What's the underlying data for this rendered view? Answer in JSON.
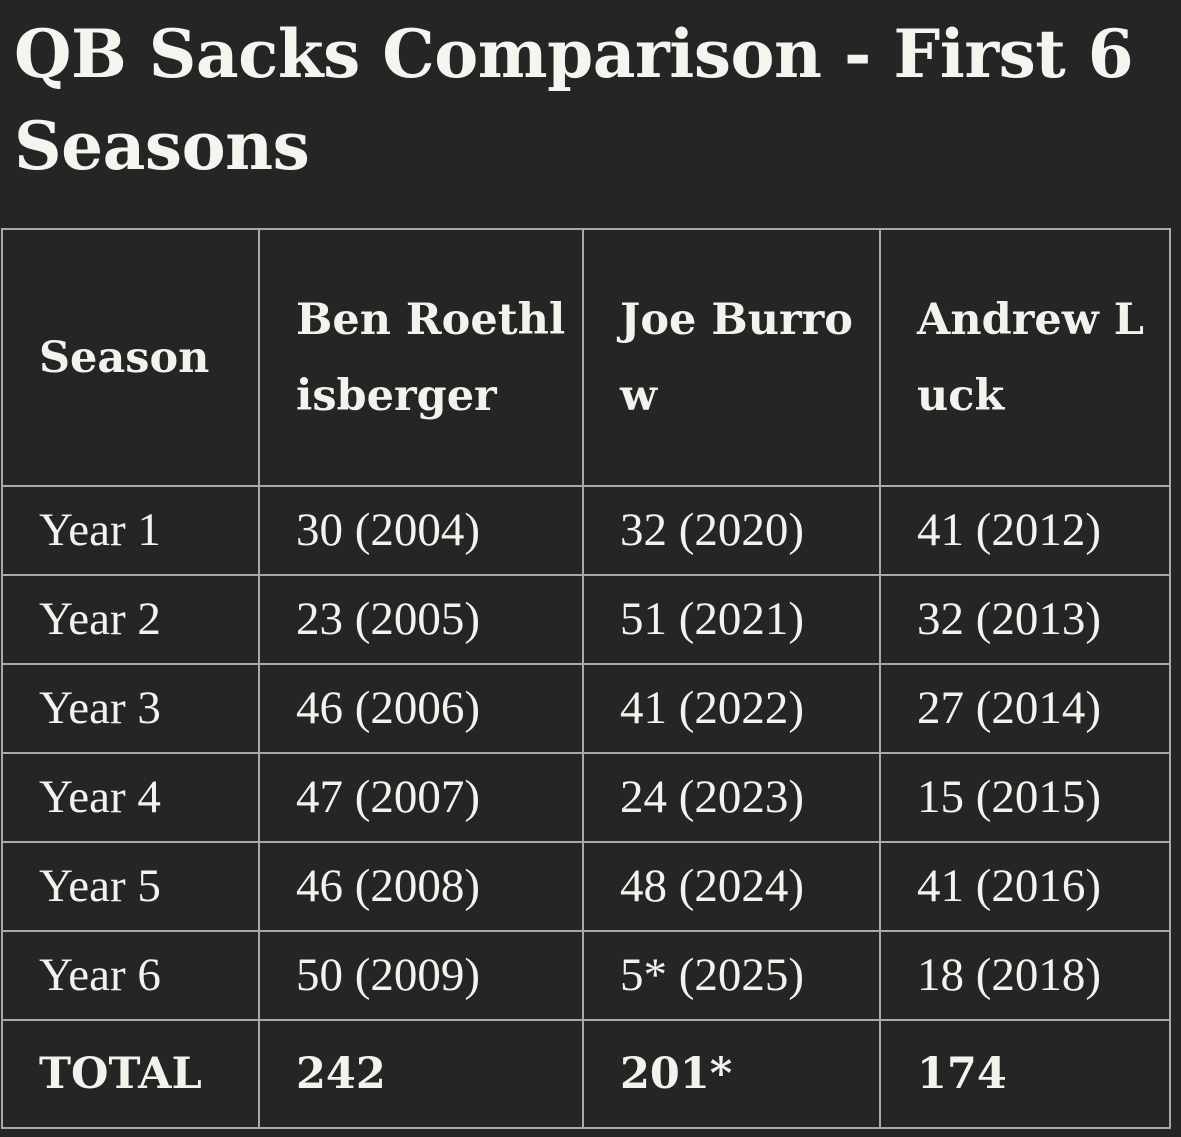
{
  "title": "QB Sacks Comparison - First 6 Seasons",
  "table": {
    "headers": [
      "Season",
      "Ben Roethlisberger",
      "Joe Burrow",
      "Andrew Luck"
    ],
    "rows": [
      [
        "Year 1",
        "30 (2004)",
        "32 (2020)",
        "41 (2012)"
      ],
      [
        "Year 2",
        "23 (2005)",
        "51 (2021)",
        "32 (2013)"
      ],
      [
        "Year 3",
        "46 (2006)",
        "41 (2022)",
        "27 (2014)"
      ],
      [
        "Year 4",
        "47 (2007)",
        "24 (2023)",
        "15 (2015)"
      ],
      [
        "Year 5",
        "46 (2008)",
        "48 (2024)",
        "41 (2016)"
      ],
      [
        "Year 6",
        "50 (2009)",
        "5* (2025)",
        "18 (2018)"
      ]
    ],
    "total": [
      "TOTAL",
      "242",
      "201*",
      "174"
    ]
  },
  "colors": {
    "background": "#252525",
    "text": "#f4f2ec",
    "grid": "#a9a7b0"
  }
}
